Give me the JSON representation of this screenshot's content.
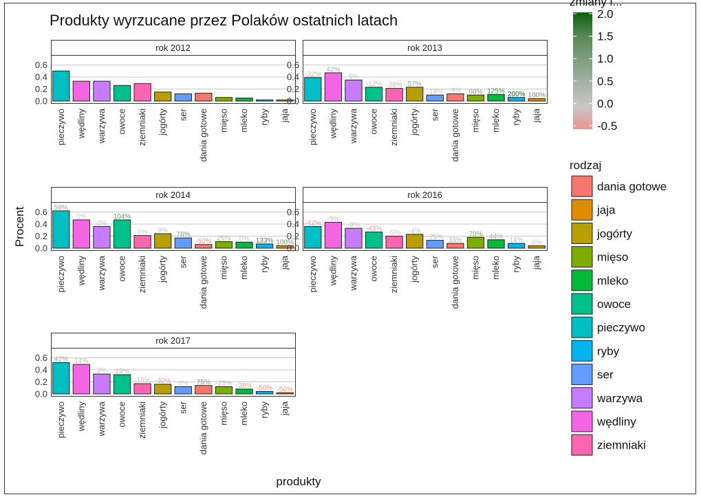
{
  "title": "Produkty wyrzucane przez Polaków ostatnich latach",
  "axes": {
    "xlabel": "produkty",
    "ylabel": "Procent"
  },
  "legend": {
    "fill_title": "rodzaj",
    "color_title": "zmiany i...",
    "fill_items": [
      {
        "label": "dania gotowe",
        "color": "#F8766D"
      },
      {
        "label": "jaja",
        "color": "#DE8C00"
      },
      {
        "label": "jogórty",
        "color": "#B79F00"
      },
      {
        "label": "mięso",
        "color": "#7CAE00"
      },
      {
        "label": "mleko",
        "color": "#00BA38"
      },
      {
        "label": "owoce",
        "color": "#00C08B"
      },
      {
        "label": "pieczywo",
        "color": "#00BFC4"
      },
      {
        "label": "ryby",
        "color": "#00B4F0"
      },
      {
        "label": "ser",
        "color": "#619CFF"
      },
      {
        "label": "warzywa",
        "color": "#C77CFF"
      },
      {
        "label": "wędliny",
        "color": "#F564E3"
      },
      {
        "label": "ziemniaki",
        "color": "#FF64B0"
      }
    ],
    "colorbar": {
      "ticks": [
        "2.0",
        "1.5",
        "1.0",
        "0.5",
        "0.0",
        "-0.5"
      ],
      "min": -0.5,
      "max": 2.0,
      "low_color": "#E8968A",
      "mid_color": "#C8C8C8",
      "high_color": "#0B5E0B"
    }
  },
  "chart_data": [
    {
      "type": "bar",
      "facet": "rok 2012",
      "categories": [
        "pieczywo",
        "wędliny",
        "warzywa",
        "owoce",
        "ziemniaki",
        "jogórty",
        "ser",
        "dania gotowe",
        "mięso",
        "mleko",
        "ryby",
        "jaja"
      ],
      "fill_groups": [
        "pieczywo",
        "wędliny",
        "warzywa",
        "owoce",
        "ziemniaki",
        "jogórty",
        "ser",
        "dania gotowe",
        "mięso",
        "mleko",
        "ryby",
        "jaja"
      ],
      "values": [
        0.5,
        0.33,
        0.33,
        0.26,
        0.29,
        0.15,
        0.12,
        0.13,
        0.06,
        0.05,
        0.02,
        0.02
      ],
      "change_labels": [
        "",
        "",
        "",
        "",
        "",
        "",
        "",
        "",
        "",
        "",
        "",
        ""
      ],
      "change_values": [
        null,
        null,
        null,
        null,
        null,
        null,
        null,
        null,
        null,
        null,
        null,
        null
      ],
      "y_ticks": [
        "0.0",
        "0.2",
        "0.4",
        "0.6"
      ],
      "ylim": [
        0,
        0.72
      ]
    },
    {
      "type": "bar",
      "facet": "rok 2013",
      "categories": [
        "pieczywo",
        "wędliny",
        "warzywa",
        "owoce",
        "ziemniaki",
        "jogórty",
        "ser",
        "dania gotowe",
        "mięso",
        "mleko",
        "ryby",
        "jaja"
      ],
      "fill_groups": [
        "pieczywo",
        "wędliny",
        "warzywa",
        "owoce",
        "ziemniaki",
        "jogórty",
        "ser",
        "dania gotowe",
        "mięso",
        "mleko",
        "ryby",
        "jaja"
      ],
      "values": [
        0.39,
        0.47,
        0.35,
        0.23,
        0.21,
        0.23,
        0.1,
        0.12,
        0.1,
        0.11,
        0.06,
        0.04
      ],
      "change_labels": [
        "-22%",
        "42%",
        "6%",
        "-12%",
        "-28%",
        "57%",
        "-18%",
        "-9%",
        "60%",
        "125%",
        "200%",
        "100%"
      ],
      "change_values": [
        -0.22,
        0.42,
        0.06,
        -0.12,
        -0.28,
        0.57,
        -0.18,
        -0.09,
        0.6,
        1.25,
        2.0,
        1.0
      ],
      "y_ticks": [
        "0.0",
        "0.2",
        "0.4",
        "0.6"
      ],
      "ylim": [
        0,
        0.72
      ]
    },
    {
      "type": "bar",
      "facet": "rok 2014",
      "categories": [
        "pieczywo",
        "wędliny",
        "warzywa",
        "owoce",
        "ziemniaki",
        "jogórty",
        "ser",
        "dania gotowe",
        "mięso",
        "mleko",
        "ryby",
        "jaja"
      ],
      "fill_groups": [
        "pieczywo",
        "wędliny",
        "warzywa",
        "owoce",
        "ziemniaki",
        "jogórty",
        "ser",
        "dania gotowe",
        "mięso",
        "mleko",
        "ryby",
        "jaja"
      ],
      "values": [
        0.62,
        0.47,
        0.36,
        0.47,
        0.21,
        0.24,
        0.17,
        0.06,
        0.11,
        0.1,
        0.07,
        0.04
      ],
      "change_labels": [
        "59%",
        "0%",
        "0%",
        "104%",
        "0%",
        "9%",
        "78%",
        "-50%",
        "25%",
        "0%",
        "133%",
        "100%"
      ],
      "change_values": [
        0.59,
        0.0,
        0.0,
        1.04,
        0.0,
        0.09,
        0.78,
        -0.5,
        0.25,
        0.0,
        1.33,
        1.0
      ],
      "y_ticks": [
        "0.0",
        "0.2",
        "0.4",
        "0.6"
      ],
      "ylim": [
        0,
        0.72
      ]
    },
    {
      "type": "bar",
      "facet": "rok 2016",
      "categories": [
        "pieczywo",
        "wędliny",
        "warzywa",
        "owoce",
        "ziemniaki",
        "jogórty",
        "ser",
        "dania gotowe",
        "mięso",
        "mleko",
        "ryby",
        "jaja"
      ],
      "fill_groups": [
        "pieczywo",
        "wędliny",
        "warzywa",
        "owoce",
        "ziemniaki",
        "jogórty",
        "ser",
        "dania gotowe",
        "mięso",
        "mleko",
        "ryby",
        "jaja"
      ],
      "values": [
        0.36,
        0.43,
        0.33,
        0.27,
        0.2,
        0.23,
        0.13,
        0.08,
        0.18,
        0.14,
        0.08,
        0.04
      ],
      "change_labels": [
        "-42%",
        "-9%",
        "-9%",
        "-43%",
        "-5%",
        "-4%",
        "-25%",
        "33%",
        "70%",
        "44%",
        "14%",
        "0%"
      ],
      "change_values": [
        -0.42,
        -0.09,
        -0.09,
        -0.43,
        -0.05,
        -0.04,
        -0.25,
        0.33,
        0.7,
        0.44,
        0.14,
        0.0
      ],
      "y_ticks": [
        "0.0",
        "0.2",
        "0.4",
        "0.6"
      ],
      "ylim": [
        0,
        0.72
      ]
    },
    {
      "type": "bar",
      "facet": "rok 2017",
      "categories": [
        "pieczywo",
        "wędliny",
        "warzywa",
        "owoce",
        "ziemniaki",
        "jogórty",
        "ser",
        "dania gotowe",
        "mięso",
        "mleko",
        "ryby",
        "jaja"
      ],
      "fill_groups": [
        "pieczywo",
        "wędliny",
        "warzywa",
        "owoce",
        "ziemniaki",
        "jogórty",
        "ser",
        "dania gotowe",
        "mięso",
        "mleko",
        "ryby",
        "jaja"
      ],
      "values": [
        0.52,
        0.49,
        0.33,
        0.32,
        0.17,
        0.16,
        0.12,
        0.14,
        0.12,
        0.08,
        0.04,
        0.02
      ],
      "change_labels": [
        "42%",
        "14%",
        "3%",
        "19%",
        "-15%",
        "-30%",
        "0%",
        "75%",
        "-25%",
        "-38%",
        "-50%",
        "-50%"
      ],
      "change_values": [
        0.42,
        0.14,
        0.03,
        0.19,
        -0.15,
        -0.3,
        0.0,
        0.75,
        -0.25,
        -0.38,
        -0.5,
        -0.5
      ],
      "y_ticks": [
        "0.0",
        "0.2",
        "0.4",
        "0.6"
      ],
      "ylim": [
        0,
        0.72
      ]
    }
  ]
}
